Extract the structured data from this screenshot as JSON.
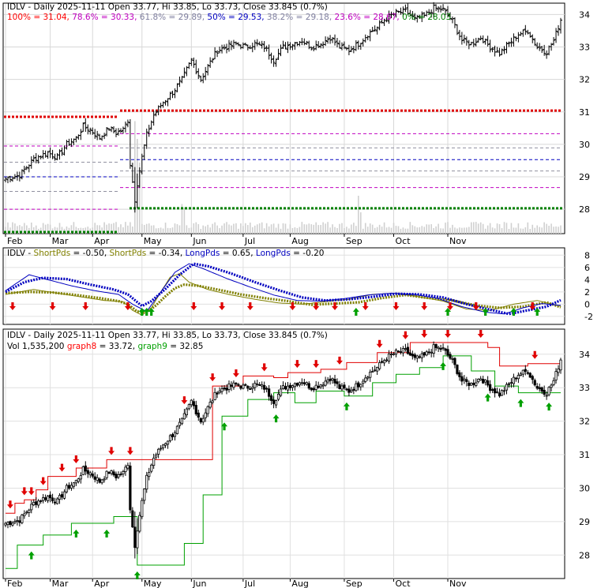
{
  "chart_data": [
    {
      "type": "candlestick",
      "panel": "price",
      "title": "IDLV - Daily 2025-11-11 Open 33.77, Hi 33.85, Lo 33.73, Close 33.845 (0.7%)",
      "fib_labels": [
        {
          "text": "100% = 31.04,",
          "color": "#ff0000"
        },
        {
          "text": "78.6% = 30.33,",
          "color": "#c000c0"
        },
        {
          "text": "61.8% = 29.89,",
          "color": "#8080a0"
        },
        {
          "text": "50% = 29.53,",
          "color": "#0000c0"
        },
        {
          "text": "38.2% = 29.18,",
          "color": "#8080a0"
        },
        {
          "text": "23.6% = 28.67,",
          "color": "#c000c0"
        },
        {
          "text": "0% = 28.03",
          "color": "#008000"
        }
      ],
      "fib_levels": [
        {
          "level": "100%",
          "value": 31.04,
          "color": "#e00000",
          "style": "thick-dotted"
        },
        {
          "level": "78.6%",
          "value": 30.33,
          "color": "#c000c0",
          "style": "dashed"
        },
        {
          "level": "61.8%",
          "value": 29.89,
          "color": "#9090a0",
          "style": "dashed"
        },
        {
          "level": "50%",
          "value": 29.53,
          "color": "#0000c0",
          "style": "dashed"
        },
        {
          "level": "38.2%",
          "value": 29.18,
          "color": "#9090a0",
          "style": "dashed"
        },
        {
          "level": "23.6%",
          "value": 28.67,
          "color": "#c000c0",
          "style": "dashed"
        },
        {
          "level": "0%",
          "value": 28.03,
          "color": "#008000",
          "style": "thick-dotted"
        }
      ],
      "y_ticks": [
        28,
        29,
        30,
        31,
        32,
        33,
        34
      ],
      "ylim": [
        27.25,
        34.35
      ],
      "x_ticks": [
        "Feb",
        "Mar",
        "Apr",
        "May",
        "Jun",
        "Jul",
        "Aug",
        "Sep",
        "Oct",
        "Nov"
      ],
      "series_close_anchors": [
        [
          0,
          28.95
        ],
        [
          6,
          29.05
        ],
        [
          12,
          29.55
        ],
        [
          18,
          29.75
        ],
        [
          22,
          29.6
        ],
        [
          26,
          30.0
        ],
        [
          30,
          30.2
        ],
        [
          33,
          30.55
        ],
        [
          36,
          30.45
        ],
        [
          40,
          30.2
        ],
        [
          44,
          30.5
        ],
        [
          47,
          30.35
        ],
        [
          50,
          30.45
        ],
        [
          52,
          30.75
        ],
        [
          53,
          29.4
        ],
        [
          55,
          28.3
        ],
        [
          56,
          28.8
        ],
        [
          58,
          29.6
        ],
        [
          60,
          30.3
        ],
        [
          63,
          30.9
        ],
        [
          67,
          31.3
        ],
        [
          71,
          31.6
        ],
        [
          75,
          32.0
        ],
        [
          79,
          32.6
        ],
        [
          83,
          32.0
        ],
        [
          86,
          32.4
        ],
        [
          90,
          32.9
        ],
        [
          94,
          33.0
        ],
        [
          98,
          33.1
        ],
        [
          102,
          33.0
        ],
        [
          106,
          33.1
        ],
        [
          110,
          33.0
        ],
        [
          114,
          32.6
        ],
        [
          118,
          33.0
        ],
        [
          122,
          33.1
        ],
        [
          126,
          33.2
        ],
        [
          130,
          33.0
        ],
        [
          134,
          33.1
        ],
        [
          138,
          33.3
        ],
        [
          142,
          33.0
        ],
        [
          146,
          32.9
        ],
        [
          150,
          33.1
        ],
        [
          154,
          33.4
        ],
        [
          158,
          33.6
        ],
        [
          162,
          33.9
        ],
        [
          166,
          34.05
        ],
        [
          170,
          34.1
        ],
        [
          174,
          33.85
        ],
        [
          178,
          33.95
        ],
        [
          182,
          34.2
        ],
        [
          186,
          34.15
        ],
        [
          190,
          33.8
        ],
        [
          194,
          33.2
        ],
        [
          198,
          33.1
        ],
        [
          202,
          33.3
        ],
        [
          206,
          33.0
        ],
        [
          210,
          32.8
        ],
        [
          214,
          33.1
        ],
        [
          218,
          33.4
        ],
        [
          222,
          33.5
        ],
        [
          226,
          33.0
        ],
        [
          230,
          32.85
        ],
        [
          233,
          33.2
        ],
        [
          236,
          33.845
        ]
      ],
      "volume_spikes": [
        {
          "index": 55,
          "relative": 0.95
        },
        {
          "index": 56,
          "relative": 0.8
        },
        {
          "index": 57,
          "relative": 0.6
        },
        {
          "index": 75,
          "relative": 0.25
        },
        {
          "index": 76,
          "relative": 0.22
        },
        {
          "index": 150,
          "relative": 0.32
        },
        {
          "index": 151,
          "relative": 0.18
        }
      ]
    },
    {
      "type": "line",
      "panel": "indicator",
      "title_parts": [
        {
          "text": "IDLV - ",
          "color": "#000000"
        },
        {
          "text": "ShortPds",
          "color": "#808000"
        },
        {
          "text": " = -0.50, ",
          "color": "#000000"
        },
        {
          "text": "ShortPds",
          "color": "#808000"
        },
        {
          "text": " = -0.34, ",
          "color": "#000000"
        },
        {
          "text": "LongPds",
          "color": "#0000c0"
        },
        {
          "text": " = 0.65, ",
          "color": "#000000"
        },
        {
          "text": "LongPds",
          "color": "#0000c0"
        },
        {
          "text": " = -0.20",
          "color": "#000000"
        }
      ],
      "y_ticks": [
        -2,
        0,
        2,
        4,
        6,
        8
      ],
      "ylim": [
        -3.3,
        9.2
      ],
      "series": [
        {
          "name": "ShortPds",
          "color": "#808000",
          "style": "dotted-thick",
          "anchors": [
            [
              0,
              1.8
            ],
            [
              10,
              2.0
            ],
            [
              20,
              1.9
            ],
            [
              30,
              1.5
            ],
            [
              40,
              1.0
            ],
            [
              48,
              0.5
            ],
            [
              52,
              0.0
            ],
            [
              56,
              -1.2
            ],
            [
              60,
              -1.3
            ],
            [
              64,
              -0.2
            ],
            [
              68,
              1.3
            ],
            [
              72,
              2.6
            ],
            [
              76,
              3.2
            ],
            [
              82,
              3.0
            ],
            [
              90,
              2.4
            ],
            [
              100,
              1.6
            ],
            [
              110,
              1.0
            ],
            [
              120,
              0.5
            ],
            [
              130,
              -0.1
            ],
            [
              140,
              0.1
            ],
            [
              150,
              0.3
            ],
            [
              160,
              1.0
            ],
            [
              170,
              1.5
            ],
            [
              180,
              1.0
            ],
            [
              190,
              0.6
            ],
            [
              200,
              -0.2
            ],
            [
              210,
              -0.6
            ],
            [
              220,
              -0.4
            ],
            [
              230,
              0.3
            ],
            [
              236,
              -0.5
            ]
          ]
        },
        {
          "name": "ShortPds",
          "color": "#808000",
          "style": "thin",
          "anchors": [
            [
              0,
              1.6
            ],
            [
              12,
              2.4
            ],
            [
              22,
              1.8
            ],
            [
              32,
              1.2
            ],
            [
              42,
              0.6
            ],
            [
              50,
              0.4
            ],
            [
              54,
              -1.0
            ],
            [
              58,
              -1.8
            ],
            [
              62,
              -0.6
            ],
            [
              66,
              2.0
            ],
            [
              70,
              4.4
            ],
            [
              74,
              5.0
            ],
            [
              78,
              3.6
            ],
            [
              86,
              2.4
            ],
            [
              96,
              1.5
            ],
            [
              106,
              0.8
            ],
            [
              116,
              0.2
            ],
            [
              126,
              0.0
            ],
            [
              136,
              0.4
            ],
            [
              146,
              0.8
            ],
            [
              156,
              1.6
            ],
            [
              166,
              1.8
            ],
            [
              176,
              1.2
            ],
            [
              186,
              0.5
            ],
            [
              196,
              -0.8
            ],
            [
              206,
              -1.0
            ],
            [
              216,
              0.0
            ],
            [
              226,
              0.6
            ],
            [
              236,
              -0.34
            ]
          ]
        },
        {
          "name": "LongPds",
          "color": "#0000c0",
          "style": "dotted-thick",
          "anchors": [
            [
              0,
              2.0
            ],
            [
              8,
              3.6
            ],
            [
              16,
              4.3
            ],
            [
              26,
              4.1
            ],
            [
              36,
              3.2
            ],
            [
              46,
              2.4
            ],
            [
              52,
              1.6
            ],
            [
              58,
              -0.3
            ],
            [
              62,
              0.5
            ],
            [
              68,
              2.5
            ],
            [
              74,
              4.8
            ],
            [
              80,
              6.6
            ],
            [
              86,
              6.2
            ],
            [
              96,
              5.0
            ],
            [
              106,
              3.6
            ],
            [
              116,
              2.3
            ],
            [
              126,
              1.1
            ],
            [
              136,
              0.6
            ],
            [
              146,
              0.8
            ],
            [
              156,
              1.2
            ],
            [
              166,
              1.7
            ],
            [
              176,
              1.6
            ],
            [
              186,
              1.1
            ],
            [
              196,
              0.0
            ],
            [
              206,
              -0.9
            ],
            [
              214,
              -1.6
            ],
            [
              222,
              -1.0
            ],
            [
              230,
              -0.4
            ],
            [
              236,
              0.65
            ]
          ]
        },
        {
          "name": "LongPds",
          "color": "#0000c0",
          "style": "thin",
          "anchors": [
            [
              0,
              2.2
            ],
            [
              10,
              4.8
            ],
            [
              18,
              4.0
            ],
            [
              28,
              3.0
            ],
            [
              38,
              2.2
            ],
            [
              48,
              1.6
            ],
            [
              54,
              0.0
            ],
            [
              60,
              -1.2
            ],
            [
              66,
              2.0
            ],
            [
              72,
              5.2
            ],
            [
              78,
              6.6
            ],
            [
              84,
              5.8
            ],
            [
              94,
              4.2
            ],
            [
              104,
              2.8
            ],
            [
              114,
              1.5
            ],
            [
              124,
              0.6
            ],
            [
              134,
              0.5
            ],
            [
              144,
              0.9
            ],
            [
              154,
              1.5
            ],
            [
              164,
              1.8
            ],
            [
              174,
              1.6
            ],
            [
              184,
              0.9
            ],
            [
              194,
              -0.4
            ],
            [
              204,
              -1.3
            ],
            [
              212,
              -1.6
            ],
            [
              220,
              -0.6
            ],
            [
              228,
              0.1
            ],
            [
              236,
              -0.2
            ]
          ]
        }
      ],
      "sell_arrow_indices": [
        3,
        20,
        34,
        52,
        80,
        92,
        104,
        122,
        132,
        140,
        153,
        166,
        178,
        189,
        200,
        224
      ],
      "buy_arrow_indices": [
        58,
        60,
        62,
        149,
        188,
        204,
        216,
        226
      ]
    },
    {
      "type": "candlestick",
      "panel": "price_trailing",
      "title": "IDLV - Daily 2025-11-11 Open 33.77, Hi 33.85, Lo 33.73, Close 33.845 (0.7%)",
      "legend_parts": [
        {
          "text": "Vol 1,535,200 ",
          "color": "#000000"
        },
        {
          "text": "graph8",
          "color": "#ff0000"
        },
        {
          "text": " = 33.72, ",
          "color": "#000000"
        },
        {
          "text": "graph9",
          "color": "#00a000"
        },
        {
          "text": " = 32.85",
          "color": "#000000"
        }
      ],
      "y_ticks": [
        28,
        29,
        30,
        31,
        32,
        33,
        34
      ],
      "ylim": [
        27.3,
        34.75
      ],
      "graph8_steps": [
        [
          0,
          29.25
        ],
        [
          4,
          29.55
        ],
        [
          8,
          29.65
        ],
        [
          13,
          29.95
        ],
        [
          18,
          30.35
        ],
        [
          30,
          30.6
        ],
        [
          43,
          30.85
        ],
        [
          50,
          30.85
        ],
        [
          53,
          30.85
        ],
        [
          55,
          30.85
        ],
        [
          88,
          33.05
        ],
        [
          101,
          33.35
        ],
        [
          114,
          33.3
        ],
        [
          120,
          33.45
        ],
        [
          134,
          33.55
        ],
        [
          145,
          33.75
        ],
        [
          158,
          34.05
        ],
        [
          172,
          34.35
        ],
        [
          197,
          34.35
        ],
        [
          205,
          34.2
        ],
        [
          210,
          33.65
        ],
        [
          222,
          33.72
        ],
        [
          236,
          33.72
        ]
      ],
      "graph9_steps": [
        [
          0,
          27.6
        ],
        [
          5,
          28.3
        ],
        [
          16,
          28.6
        ],
        [
          28,
          28.95
        ],
        [
          46,
          29.15
        ],
        [
          56,
          27.7
        ],
        [
          64,
          27.7
        ],
        [
          76,
          28.35
        ],
        [
          84,
          29.8
        ],
        [
          92,
          32.15
        ],
        [
          103,
          32.65
        ],
        [
          114,
          32.85
        ],
        [
          123,
          32.55
        ],
        [
          132,
          32.9
        ],
        [
          144,
          32.75
        ],
        [
          156,
          33.15
        ],
        [
          166,
          33.4
        ],
        [
          176,
          33.6
        ],
        [
          186,
          33.95
        ],
        [
          198,
          33.5
        ],
        [
          208,
          33.05
        ],
        [
          218,
          32.85
        ],
        [
          236,
          32.85
        ]
      ],
      "sell_arrow_indices": [
        2,
        8,
        11,
        16,
        24,
        30,
        45,
        53,
        76,
        88,
        98,
        110,
        124,
        132,
        142,
        159,
        170,
        178,
        188,
        202,
        225
      ],
      "buy_arrow_indices": [
        11,
        30,
        43,
        56,
        93,
        115,
        145,
        186,
        205,
        219,
        231
      ]
    }
  ]
}
